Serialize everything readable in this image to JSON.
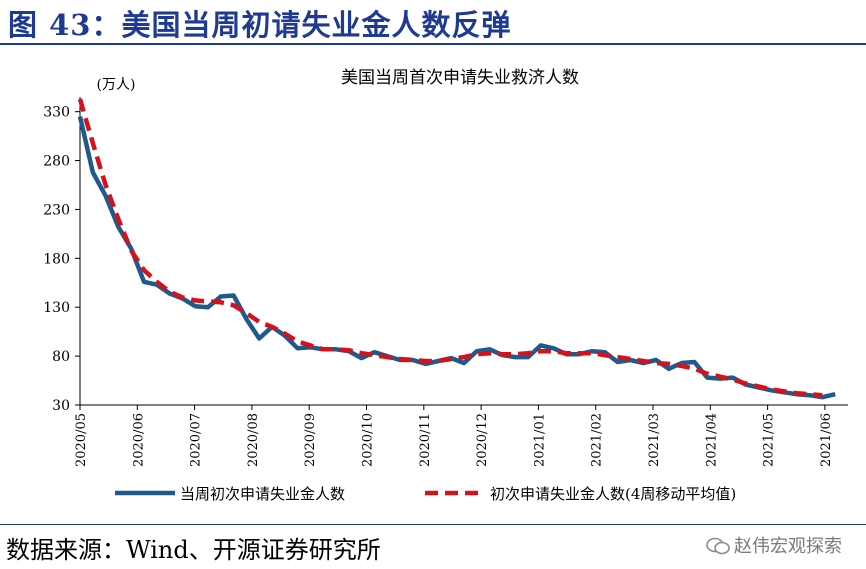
{
  "header": {
    "title": "图 43：美国当周初请失业金人数反弹"
  },
  "footer": {
    "source": "数据来源：Wind、开源证券研究所",
    "watermark": "赵伟宏观探索"
  },
  "colors": {
    "title": "#1f3a93",
    "weekly": "#1e5a8c",
    "ma4": "#d4121c"
  },
  "chart_data": {
    "type": "line",
    "title": "美国当周首次申请失业救济人数",
    "ylabel": "(万人)",
    "ylim": [
      30,
      345
    ],
    "yticks": [
      30,
      80,
      130,
      180,
      230,
      280,
      330
    ],
    "xticks": [
      "2020/05",
      "2020/06",
      "2020/07",
      "2020/08",
      "2020/09",
      "2020/10",
      "2020/11",
      "2020/12",
      "2021/01",
      "2021/02",
      "2021/03",
      "2021/04",
      "2021/05",
      "2021/06"
    ],
    "legend_position": "bottom",
    "series": [
      {
        "name": "当周初次申请失业金人数",
        "values": [
          325,
          268,
          244,
          212,
          190,
          156,
          153,
          144,
          139,
          131,
          130,
          141,
          142,
          118,
          98,
          110,
          101,
          88,
          89,
          87,
          87,
          85,
          78,
          84,
          80,
          76,
          76,
          72,
          75,
          78,
          73,
          85,
          87,
          81,
          79,
          79,
          91,
          88,
          82,
          82,
          85,
          84,
          74,
          76,
          73,
          76,
          67,
          73,
          74,
          58,
          57,
          58,
          51,
          48,
          45,
          43,
          41,
          40,
          38,
          41
        ]
      },
      {
        "name": "初次申请失业金人数(4周移动平均值)",
        "values": [
          343,
          298,
          255,
          220,
          188,
          168,
          156,
          146,
          140,
          137,
          136,
          135,
          132,
          124,
          115,
          110,
          103,
          95,
          91,
          87,
          87,
          86,
          83,
          81,
          79,
          77,
          76,
          75,
          75,
          77,
          79,
          82,
          83,
          82,
          82,
          83,
          85,
          85,
          83,
          83,
          83,
          81,
          79,
          77,
          75,
          73,
          72,
          70,
          67,
          62,
          59,
          56,
          52,
          49,
          46,
          44,
          42,
          41,
          40
        ]
      }
    ]
  }
}
